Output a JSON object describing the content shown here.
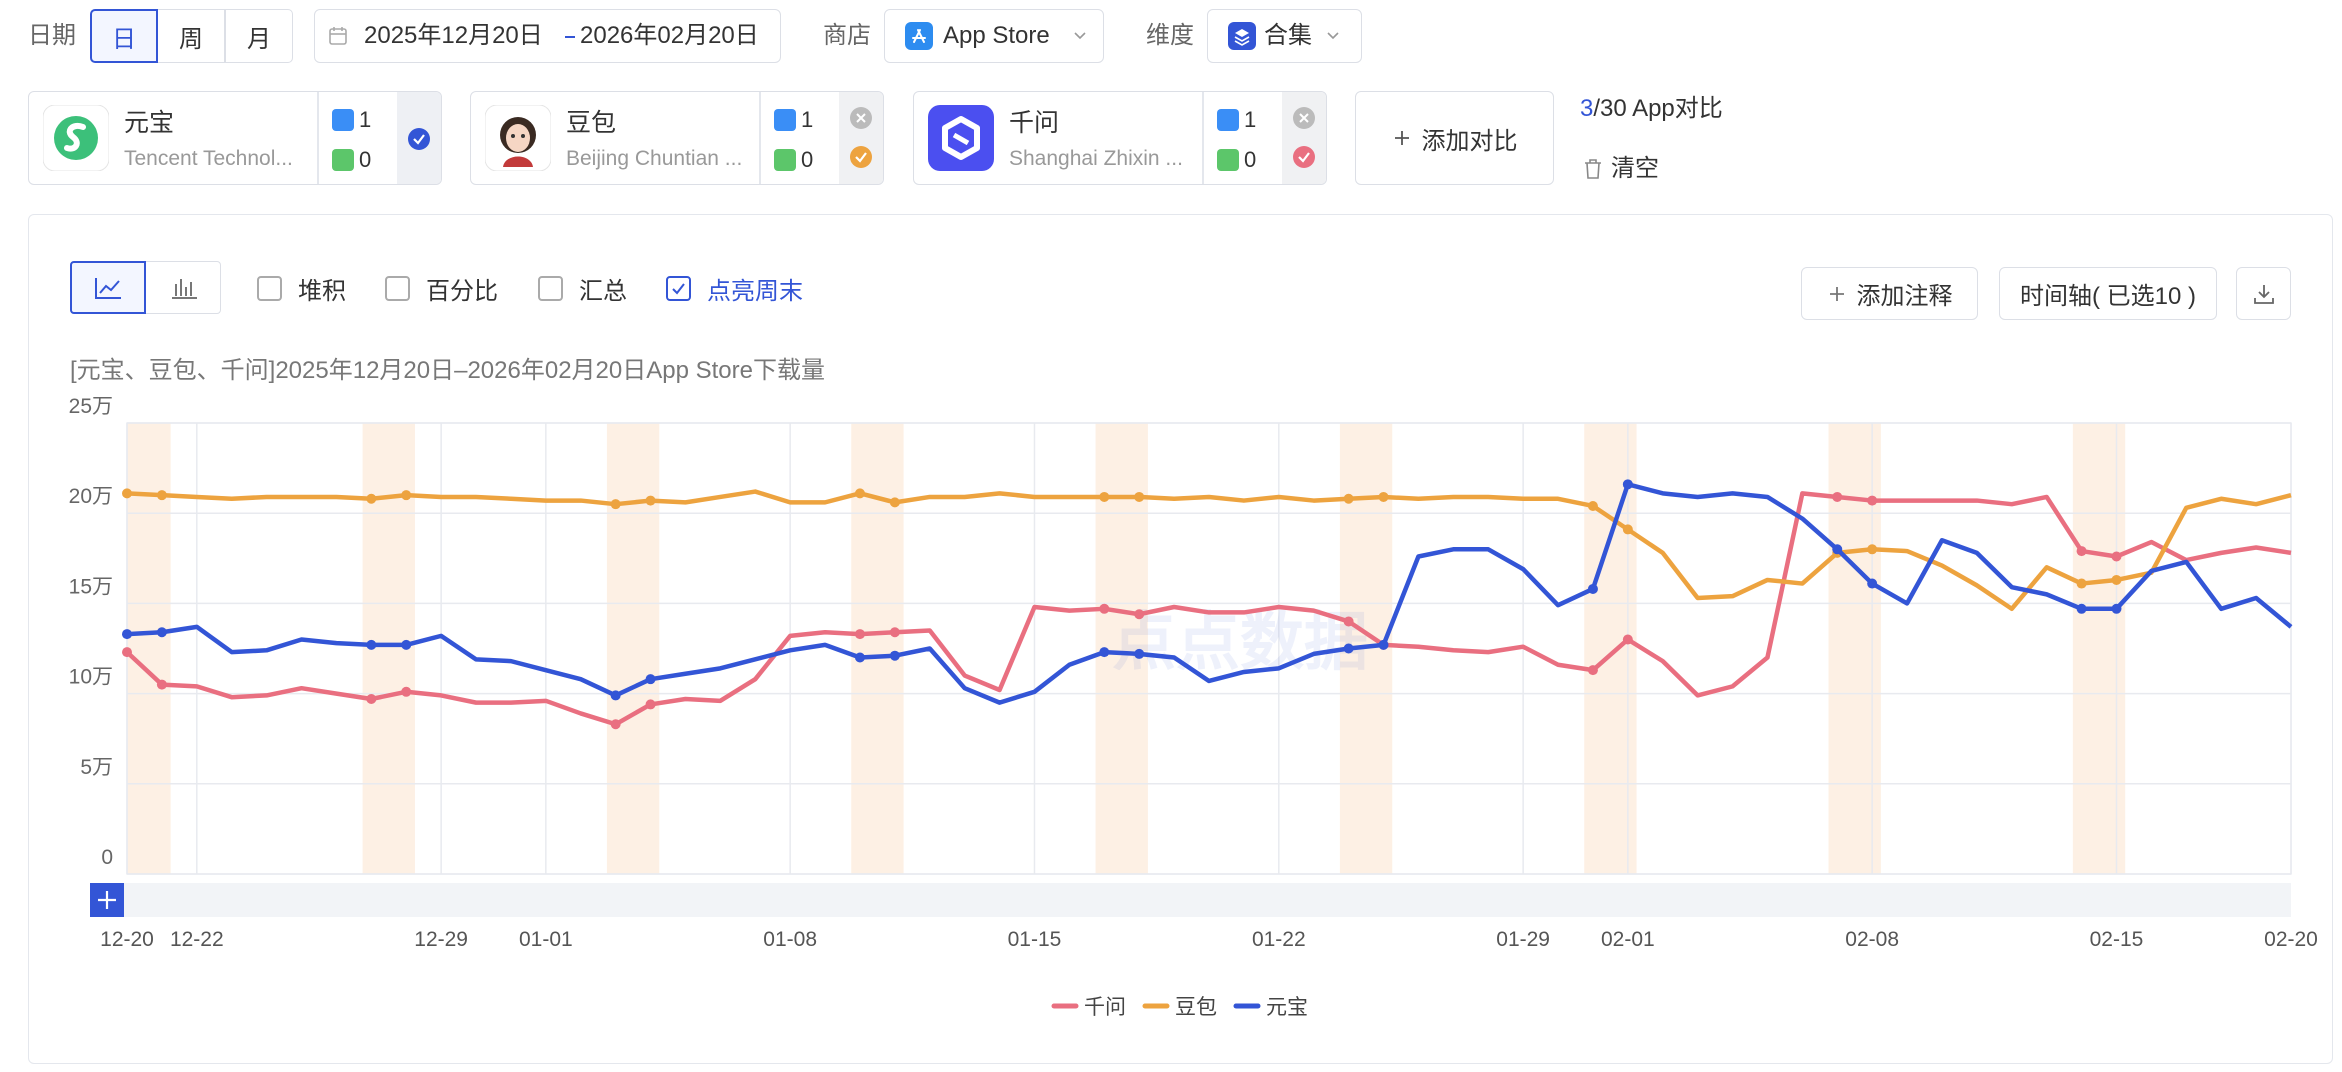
{
  "filters": {
    "date_label": "日期",
    "period": {
      "options": [
        "日",
        "周",
        "月"
      ],
      "selected": 0
    },
    "date_range": {
      "start": "2025年12月20日",
      "end": "2026年02月20日"
    },
    "store_label": "商店",
    "store": "App Store",
    "dimension_label": "维度",
    "dimension": "合集"
  },
  "apps": [
    {
      "name": "元宝",
      "company": "Tencent Technol...",
      "ios": 1,
      "android": 0,
      "color": "#3355d6",
      "removable": false
    },
    {
      "name": "豆包",
      "company": "Beijing Chuntian ...",
      "ios": 1,
      "android": 0,
      "color": "#eda33f",
      "removable": true
    },
    {
      "name": "千问",
      "company": "Shanghai Zhixin ...",
      "ios": 1,
      "android": 0,
      "color": "#e96f80",
      "removable": true
    }
  ],
  "add_compare": "添加对比",
  "compare_count": {
    "selected": 3,
    "label": "/30 App对比"
  },
  "clear": "清空",
  "toolbar": {
    "options": [
      {
        "label": "堆积",
        "checked": false
      },
      {
        "label": "百分比",
        "checked": false
      },
      {
        "label": "汇总",
        "checked": false
      },
      {
        "label": "点亮周末",
        "checked": true
      }
    ],
    "add_note": "添加注释",
    "timeline": "时间轴( 已选10 )"
  },
  "chart_data": {
    "type": "line",
    "title": "[元宝、豆包、千问]2025年12月20日–2026年02月20日App Store下载量",
    "watermark": "点点数据",
    "highlight_weekends": true,
    "grid": true,
    "categories": [
      "12-20",
      null,
      "12-22",
      null,
      null,
      null,
      null,
      null,
      null,
      "12-29",
      null,
      null,
      "01-01",
      null,
      null,
      null,
      null,
      null,
      null,
      "01-08",
      null,
      null,
      null,
      null,
      null,
      null,
      "01-15",
      null,
      null,
      null,
      null,
      null,
      null,
      "01-22",
      null,
      null,
      null,
      null,
      null,
      null,
      "01-29",
      null,
      null,
      "02-01",
      null,
      null,
      null,
      null,
      null,
      null,
      "02-08",
      null,
      null,
      null,
      null,
      null,
      null,
      "02-15",
      null,
      null,
      null,
      null,
      "02-20"
    ],
    "ylim": [
      0,
      25
    ],
    "yticks": [
      0,
      {
        "value": 5,
        "label": "5万"
      },
      {
        "value": 10,
        "label": "10万"
      },
      {
        "value": 15,
        "label": "15万"
      },
      {
        "value": 20,
        "label": "20万"
      },
      {
        "value": 25,
        "label": "25万"
      }
    ],
    "series": [
      {
        "name": "千问",
        "color": "#e96f80",
        "values": [
          12.3,
          10.5,
          10.4,
          9.8,
          9.9,
          10.3,
          10.0,
          9.7,
          10.1,
          9.9,
          9.5,
          9.5,
          9.6,
          8.9,
          8.3,
          9.4,
          9.7,
          9.6,
          10.8,
          13.2,
          13.4,
          13.3,
          13.4,
          13.5,
          11.0,
          10.2,
          14.8,
          14.6,
          14.7,
          14.4,
          14.8,
          14.5,
          14.5,
          14.8,
          14.6,
          14.0,
          12.7,
          12.6,
          12.4,
          12.3,
          12.6,
          11.6,
          11.3,
          13.0,
          11.8,
          9.9,
          10.4,
          12.0,
          21.1,
          20.9,
          20.7,
          20.7,
          20.7,
          20.7,
          20.5,
          20.9,
          17.9,
          17.6,
          18.4,
          17.4,
          17.8,
          18.1,
          17.8
        ]
      },
      {
        "name": "豆包",
        "color": "#eda33f",
        "values": [
          21.1,
          21.0,
          20.9,
          20.8,
          20.9,
          20.9,
          20.9,
          20.8,
          21.0,
          20.9,
          20.9,
          20.8,
          20.7,
          20.7,
          20.5,
          20.7,
          20.6,
          20.9,
          21.2,
          20.6,
          20.6,
          21.1,
          20.6,
          20.9,
          20.9,
          21.1,
          20.9,
          20.9,
          20.9,
          20.9,
          20.8,
          20.9,
          20.7,
          20.9,
          20.7,
          20.8,
          20.9,
          20.8,
          20.9,
          20.9,
          20.8,
          20.8,
          20.4,
          19.1,
          17.8,
          15.3,
          15.4,
          16.3,
          16.1,
          17.8,
          18.0,
          17.9,
          17.1,
          16.0,
          14.7,
          17.0,
          16.1,
          16.3,
          16.7,
          20.3,
          20.8,
          20.5,
          21.0
        ]
      },
      {
        "name": "元宝",
        "color": "#3355d6",
        "values": [
          13.3,
          13.4,
          13.7,
          12.3,
          12.4,
          13.0,
          12.8,
          12.7,
          12.7,
          13.2,
          11.9,
          11.8,
          11.3,
          10.8,
          9.9,
          10.8,
          11.1,
          11.4,
          11.9,
          12.4,
          12.7,
          12.0,
          12.1,
          12.5,
          10.3,
          9.5,
          10.1,
          11.6,
          12.3,
          12.2,
          12.0,
          10.7,
          11.2,
          11.4,
          12.2,
          12.5,
          12.7,
          17.6,
          18.0,
          18.0,
          16.9,
          14.9,
          15.8,
          21.6,
          21.1,
          20.9,
          21.1,
          20.9,
          19.7,
          18.0,
          16.1,
          15.0,
          18.5,
          17.8,
          15.9,
          15.5,
          14.7,
          14.7,
          16.8,
          17.3,
          14.7,
          15.3,
          13.7
        ]
      }
    ]
  }
}
